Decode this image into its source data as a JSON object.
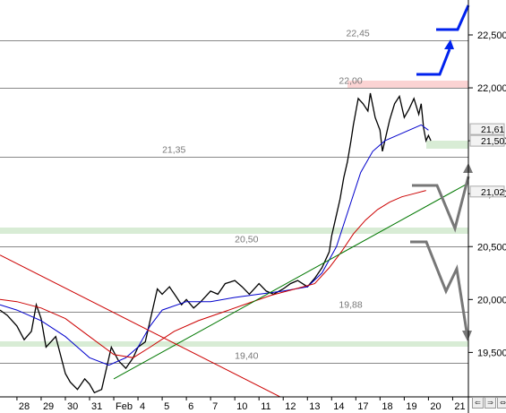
{
  "chart_data": {
    "type": "line",
    "title": "",
    "xlabel": "",
    "ylabel": "",
    "ylim": [
      19.08,
      22.83
    ],
    "y_ticks": [
      "22,500",
      "22,000",
      "21,500",
      "21,000",
      "20,500",
      "20,000",
      "19,500"
    ],
    "y_tick_values": [
      22.5,
      22.0,
      21.5,
      21.0,
      20.5,
      20.0,
      19.5
    ],
    "x_tick_labels": [
      "28",
      "29",
      "30",
      "31",
      "Feb",
      "4",
      "5",
      "6",
      "7",
      "10",
      "11",
      "12",
      "13",
      "14",
      "17",
      "18",
      "19",
      "20",
      "21"
    ],
    "x_tick_positions": [
      0,
      1,
      2,
      3,
      4,
      5,
      6,
      7,
      8,
      9,
      10,
      11,
      12,
      13,
      14,
      15,
      16,
      17,
      18
    ],
    "xlim": [
      -0.7,
      18.65
    ],
    "grid": false,
    "series": [
      {
        "values_x": [
          -0.7,
          -0.4,
          0.0,
          0.3,
          0.6,
          0.8,
          1.0,
          1.2,
          1.4,
          1.6,
          2.0,
          2.2,
          2.5,
          2.8,
          3.0,
          3.2,
          3.5,
          3.7,
          3.9,
          4.2,
          4.5,
          4.8,
          5.0,
          5.3,
          5.5,
          5.8,
          6.0,
          6.3,
          6.6,
          6.8,
          7.0,
          7.3,
          7.6,
          8.0,
          8.3,
          8.6,
          9.0,
          9.3,
          9.6,
          10.0,
          10.3,
          10.6,
          11.0,
          11.3,
          11.6,
          12.0,
          12.3,
          12.6,
          12.9,
          13.0,
          13.2,
          13.35,
          13.5,
          13.65,
          13.8,
          13.9,
          14.1,
          14.3,
          14.5,
          14.6,
          14.8,
          15.0,
          15.1,
          15.25,
          15.4,
          15.6,
          15.8,
          16.0,
          16.2,
          16.4,
          16.6,
          16.7,
          16.8,
          16.9,
          17.0,
          17.1
        ],
        "values_y": [
          19.9,
          19.85,
          19.75,
          19.62,
          19.7,
          19.95,
          19.82,
          19.55,
          19.6,
          19.65,
          19.3,
          19.22,
          19.15,
          19.25,
          19.2,
          19.12,
          19.15,
          19.35,
          19.55,
          19.42,
          19.35,
          19.45,
          19.55,
          19.6,
          19.8,
          20.1,
          20.05,
          20.12,
          20.02,
          19.95,
          20.0,
          19.92,
          19.98,
          20.08,
          20.05,
          20.15,
          20.18,
          20.12,
          20.05,
          20.15,
          20.08,
          20.05,
          20.1,
          20.15,
          20.18,
          20.12,
          20.2,
          20.3,
          20.45,
          20.6,
          20.8,
          20.95,
          21.15,
          21.3,
          21.5,
          21.65,
          21.9,
          21.85,
          21.78,
          21.95,
          21.72,
          21.6,
          21.4,
          21.55,
          21.7,
          21.85,
          21.92,
          21.72,
          21.8,
          21.9,
          21.75,
          21.85,
          21.62,
          21.5,
          21.55,
          21.5
        ],
        "color": "#000000"
      },
      {
        "values_x": [
          -0.7,
          0.0,
          1.0,
          2.0,
          3.0,
          3.8,
          4.5,
          5.0,
          5.5,
          6.0,
          7.0,
          8.0,
          9.0,
          10.0,
          11.0,
          12.0,
          12.6,
          13.2,
          13.7,
          14.2,
          14.7,
          15.2,
          15.7,
          16.2,
          16.7,
          17.0
        ],
        "values_y": [
          19.95,
          19.9,
          19.8,
          19.65,
          19.45,
          19.38,
          19.45,
          19.55,
          19.75,
          19.9,
          19.98,
          19.98,
          20.02,
          20.05,
          20.08,
          20.12,
          20.25,
          20.5,
          20.85,
          21.2,
          21.4,
          21.5,
          21.55,
          21.6,
          21.65,
          21.6
        ],
        "color": "#0000cc"
      },
      {
        "values_x": [
          -0.7,
          0.0,
          1.0,
          2.0,
          3.0,
          4.0,
          4.8,
          5.5,
          6.5,
          7.5,
          8.5,
          9.5,
          10.5,
          11.5,
          12.3,
          12.9,
          13.4,
          13.9,
          14.4,
          14.9,
          15.4,
          15.9,
          16.4,
          16.9
        ],
        "values_y": [
          20.0,
          19.98,
          19.92,
          19.82,
          19.65,
          19.48,
          19.45,
          19.55,
          19.7,
          19.8,
          19.88,
          19.96,
          20.04,
          20.1,
          20.15,
          20.3,
          20.45,
          20.62,
          20.75,
          20.85,
          20.92,
          20.97,
          21.0,
          21.03
        ],
        "color": "#cc0000"
      },
      {
        "values_x": [
          4.0,
          18.65
        ],
        "values_y": [
          19.25,
          21.1
        ],
        "color": "#007700"
      },
      {
        "values_x": [
          -0.7,
          12.0
        ],
        "values_y": [
          20.42,
          18.95
        ],
        "color": "#cc0000"
      }
    ],
    "levels": [
      {
        "label": "22,45",
        "value": 22.45,
        "label_x": 13.6
      },
      {
        "label": "22,00",
        "value": 22.0,
        "label_x": 13.3
      },
      {
        "label": "21,35",
        "value": 21.35,
        "label_x": 6.0
      },
      {
        "label": "20,50",
        "value": 20.5,
        "label_x": 9.0
      },
      {
        "label": "19,88",
        "value": 19.88,
        "label_x": 13.3
      },
      {
        "label": "19,40",
        "value": 19.4,
        "label_x": 9.0
      }
    ],
    "price_tags": [
      "21,61",
      "21,50",
      "21,02"
    ],
    "price_tag_values": [
      21.61,
      21.5,
      21.02
    ]
  },
  "ui": {
    "nav_icons": [
      "scroll-left-icon",
      "scroll-right-icon",
      "zoom-icon"
    ]
  }
}
